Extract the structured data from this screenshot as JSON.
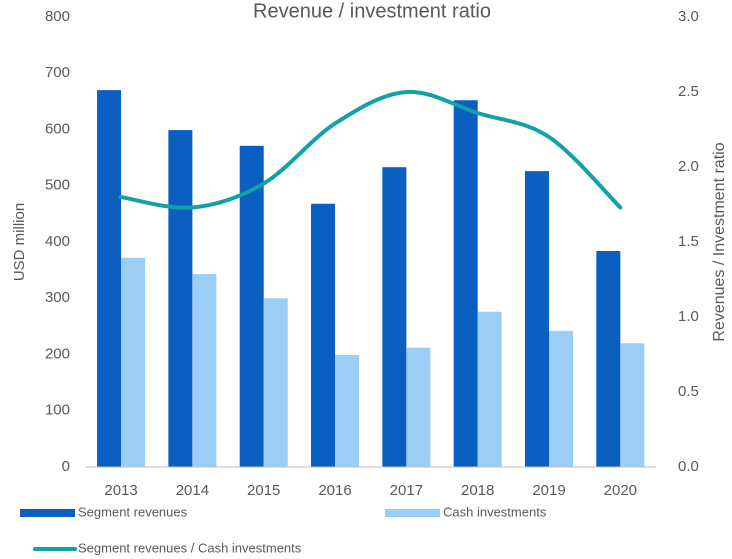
{
  "chart_data": {
    "type": "bar",
    "title": "Revenue / investment ratio",
    "categories": [
      "2013",
      "2014",
      "2015",
      "2016",
      "2017",
      "2018",
      "2019",
      "2020"
    ],
    "y_label": "USD million",
    "y2_label": "Revenues / Investment ratio",
    "ylim": [
      0,
      800
    ],
    "yticks": [
      0,
      100,
      200,
      300,
      400,
      500,
      600,
      700,
      800
    ],
    "y2lim": [
      0,
      3.0
    ],
    "y2ticks": [
      {
        "value": 0,
        "label": "0.0"
      },
      {
        "value": 0.5,
        "label": "0.5"
      },
      {
        "value": 1,
        "label": "1.0"
      },
      {
        "value": 1.5,
        "label": "1.5"
      },
      {
        "value": 2,
        "label": "2.0"
      },
      {
        "value": 2.5,
        "label": "2.5"
      },
      {
        "value": 3,
        "label": "3.0"
      }
    ],
    "series": [
      {
        "name": "Segment revenues",
        "type": "bar",
        "color": "#0a5fc0",
        "values": [
          670,
          599,
          571,
          468,
          533,
          652,
          526,
          384
        ]
      },
      {
        "name": "Cash investments",
        "type": "bar",
        "color": "#9ccdf5",
        "values": [
          372,
          343,
          300,
          199,
          212,
          276,
          242,
          220
        ]
      },
      {
        "name": "Segment revenues / Cash investments",
        "type": "line",
        "axis": "y2",
        "color": "#12a1a7",
        "values": [
          1.8,
          1.73,
          1.89,
          2.29,
          2.5,
          2.36,
          2.2,
          1.73
        ]
      }
    ]
  }
}
